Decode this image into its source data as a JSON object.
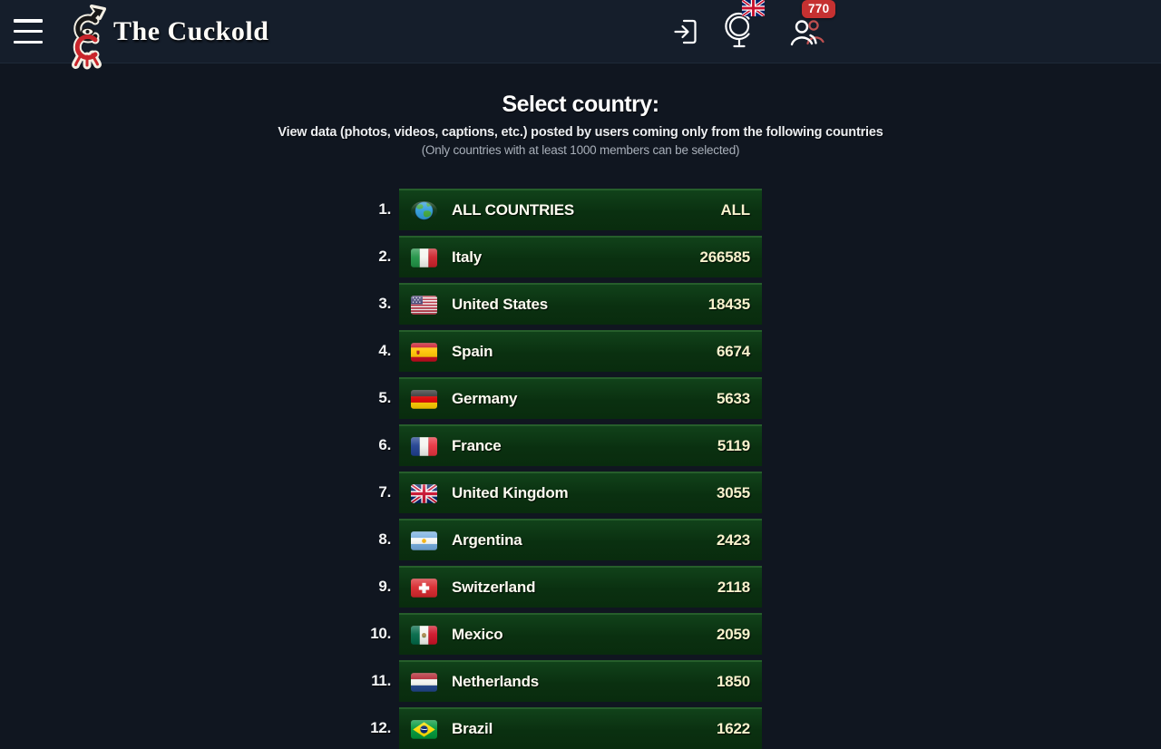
{
  "header": {
    "title": "The Cuckold",
    "members_online": "770",
    "icons": {
      "menu": "hamburger-icon",
      "logo": "cuckold-symbol-icon",
      "login": "door-arrow-login-icon",
      "language": "desk-globe-icon",
      "language_flag": "uk-flag-icon",
      "members": "two-people-icon"
    }
  },
  "main": {
    "heading": "Select country:",
    "subtitle1": "View data (photos, videos, captions, etc.) posted by users coming only from the following countries",
    "subtitle2": "(Only countries with at least 1000 members can be selected)"
  },
  "country_list": {
    "rows": [
      {
        "rank": "1.",
        "flag": "globe",
        "name": "ALL COUNTRIES",
        "count": "ALL"
      },
      {
        "rank": "2.",
        "flag": "it",
        "name": "Italy",
        "count": "266585"
      },
      {
        "rank": "3.",
        "flag": "us",
        "name": "United States",
        "count": "18435"
      },
      {
        "rank": "4.",
        "flag": "es",
        "name": "Spain",
        "count": "6674"
      },
      {
        "rank": "5.",
        "flag": "de",
        "name": "Germany",
        "count": "5633"
      },
      {
        "rank": "6.",
        "flag": "fr",
        "name": "France",
        "count": "5119"
      },
      {
        "rank": "7.",
        "flag": "gb",
        "name": "United Kingdom",
        "count": "3055"
      },
      {
        "rank": "8.",
        "flag": "ar",
        "name": "Argentina",
        "count": "2423"
      },
      {
        "rank": "9.",
        "flag": "ch",
        "name": "Switzerland",
        "count": "2118"
      },
      {
        "rank": "10.",
        "flag": "mx",
        "name": "Mexico",
        "count": "2059"
      },
      {
        "rank": "11.",
        "flag": "nl",
        "name": "Netherlands",
        "count": "1850"
      },
      {
        "rank": "12.",
        "flag": "br",
        "name": "Brazil",
        "count": "1622"
      }
    ]
  },
  "colors": {
    "header_bg": "#151e2b",
    "body_bg": "#101620",
    "row_green": "#0a3010",
    "row_border_green": "#265e2b",
    "badge_red": "#c53131",
    "logo_red": "#c9252b",
    "name_text": "#fcfbf0",
    "count_text": "#f8f2cd"
  }
}
